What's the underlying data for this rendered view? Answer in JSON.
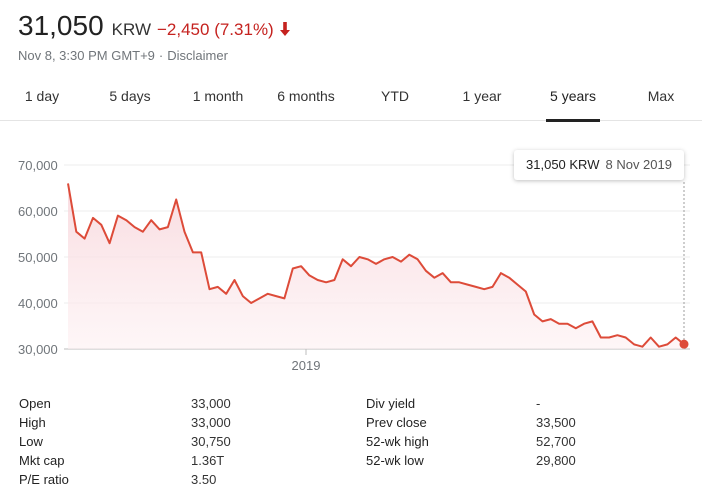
{
  "header": {
    "price": "31,050",
    "currency": "KRW",
    "change": "−2,450 (7.31%)",
    "timestamp": "Nov 8, 3:30 PM GMT+9",
    "separator": "·",
    "disclaimer": "Disclaimer",
    "change_color": "#c5221f"
  },
  "tabs": [
    {
      "label": "1 day"
    },
    {
      "label": "5 days"
    },
    {
      "label": "1 month"
    },
    {
      "label": "6 months"
    },
    {
      "label": "YTD"
    },
    {
      "label": "1 year"
    },
    {
      "label": "5 years",
      "active": true
    },
    {
      "label": "Max"
    }
  ],
  "tooltip": {
    "value": "31,050 KRW",
    "date": "8 Nov 2019"
  },
  "chart_data": {
    "type": "area",
    "line_color": "#dd4b39",
    "y_ticks": [
      "70,000",
      "60,000",
      "50,000",
      "40,000",
      "30,000"
    ],
    "y_tick_values": [
      70000,
      60000,
      50000,
      40000,
      30000
    ],
    "x_tick_label": "2019",
    "ylim": [
      30000,
      70000
    ],
    "values": [
      66000,
      55500,
      54000,
      58500,
      57000,
      53000,
      59000,
      58000,
      56500,
      55500,
      58000,
      56000,
      56500,
      62500,
      55500,
      51000,
      51000,
      43000,
      43500,
      42000,
      45000,
      41500,
      40000,
      41000,
      42000,
      41500,
      41000,
      47500,
      48000,
      46000,
      45000,
      44500,
      45000,
      49500,
      48000,
      50000,
      49500,
      48500,
      49500,
      50000,
      49000,
      50500,
      49500,
      47000,
      45500,
      46500,
      44500,
      44500,
      44000,
      43500,
      43000,
      43500,
      46500,
      45500,
      44000,
      42500,
      37500,
      36000,
      36500,
      35500,
      35500,
      34500,
      35500,
      36000,
      32500,
      32500,
      33000,
      32500,
      31000,
      30500,
      32500,
      30500,
      31000,
      32500,
      31050
    ],
    "grid": true,
    "end_marker": true
  },
  "stats": {
    "left": [
      {
        "label": "Open",
        "value": "33,000"
      },
      {
        "label": "High",
        "value": "33,000"
      },
      {
        "label": "Low",
        "value": "30,750"
      },
      {
        "label": "Mkt cap",
        "value": "1.36T"
      },
      {
        "label": "P/E ratio",
        "value": "3.50"
      }
    ],
    "right": [
      {
        "label": "Div yield",
        "value": "-"
      },
      {
        "label": "Prev close",
        "value": "33,500"
      },
      {
        "label": "52-wk high",
        "value": "52,700"
      },
      {
        "label": "52-wk low",
        "value": "29,800"
      }
    ]
  }
}
